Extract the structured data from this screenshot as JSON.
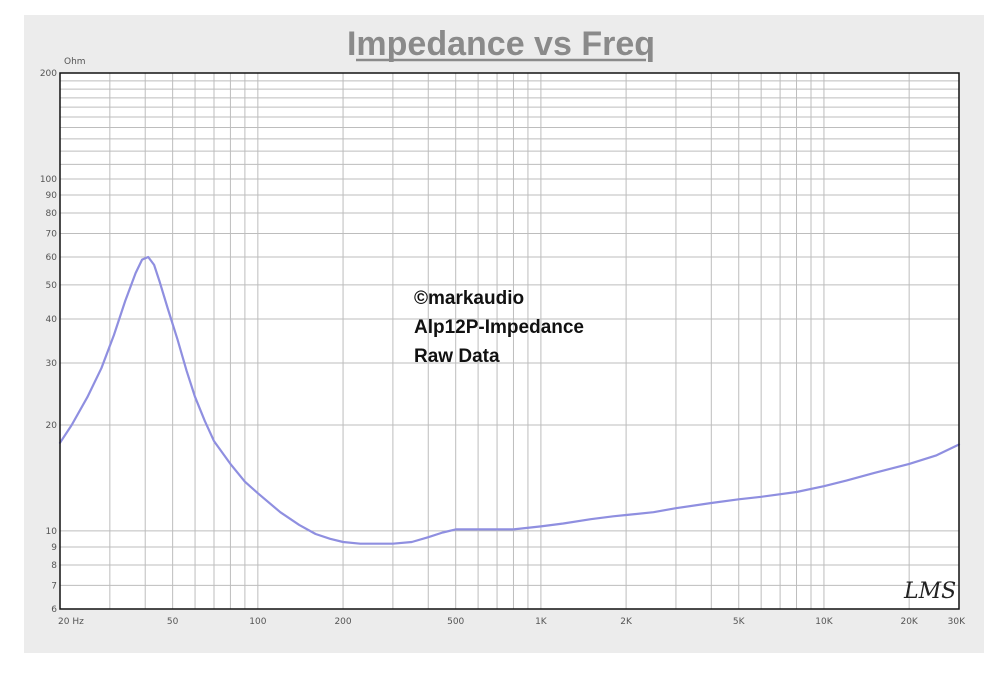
{
  "chart_data": {
    "type": "line",
    "title": "Impedance vs Freq",
    "ylabel": "Ohm",
    "xlabel": "",
    "x_scale": "log",
    "y_scale": "log",
    "xlim": [
      20,
      30000
    ],
    "ylim": [
      6,
      200
    ],
    "grid": true,
    "x_ticks": [
      {
        "value": 20,
        "label": "20 Hz"
      },
      {
        "value": 50,
        "label": "50"
      },
      {
        "value": 100,
        "label": "100"
      },
      {
        "value": 200,
        "label": "200"
      },
      {
        "value": 500,
        "label": "500"
      },
      {
        "value": 1000,
        "label": "1K"
      },
      {
        "value": 2000,
        "label": "2K"
      },
      {
        "value": 5000,
        "label": "5K"
      },
      {
        "value": 10000,
        "label": "10K"
      },
      {
        "value": 20000,
        "label": "20K"
      },
      {
        "value": 30000,
        "label": "30K"
      }
    ],
    "y_ticks": [
      {
        "value": 6,
        "label": "6"
      },
      {
        "value": 7,
        "label": "7"
      },
      {
        "value": 8,
        "label": "8"
      },
      {
        "value": 9,
        "label": "9"
      },
      {
        "value": 10,
        "label": "10"
      },
      {
        "value": 20,
        "label": "20"
      },
      {
        "value": 30,
        "label": "30"
      },
      {
        "value": 40,
        "label": "40"
      },
      {
        "value": 50,
        "label": "50"
      },
      {
        "value": 60,
        "label": "60"
      },
      {
        "value": 70,
        "label": "70"
      },
      {
        "value": 80,
        "label": "80"
      },
      {
        "value": 90,
        "label": "90"
      },
      {
        "value": 100,
        "label": "100"
      },
      {
        "value": 200,
        "label": "200"
      }
    ],
    "annotation_lines": [
      "©markaudio",
      "Alp12P-Impedance",
      "Raw Data"
    ],
    "logo_text": "LMS",
    "series": [
      {
        "color": "#8f8fe0",
        "x": [
          20,
          22,
          25,
          28,
          31,
          34,
          37,
          39,
          41,
          43,
          45,
          48,
          52,
          56,
          60,
          65,
          70,
          80,
          90,
          100,
          120,
          140,
          160,
          180,
          200,
          230,
          260,
          300,
          350,
          400,
          450,
          500,
          600,
          700,
          800,
          1000,
          1200,
          1500,
          1800,
          2000,
          2500,
          3000,
          4000,
          5000,
          6000,
          8000,
          10000,
          12000,
          15000,
          20000,
          25000,
          30000
        ],
        "y": [
          17.8,
          20,
          24,
          29,
          36,
          45,
          54,
          59,
          60,
          57,
          51,
          43,
          35,
          28.5,
          24,
          20.5,
          18,
          15.5,
          13.8,
          12.8,
          11.3,
          10.4,
          9.8,
          9.5,
          9.3,
          9.2,
          9.2,
          9.2,
          9.3,
          9.6,
          9.9,
          10.1,
          10.1,
          10.1,
          10.1,
          10.3,
          10.5,
          10.8,
          11.0,
          11.1,
          11.3,
          11.6,
          12.0,
          12.3,
          12.5,
          12.9,
          13.4,
          13.9,
          14.6,
          15.5,
          16.4,
          17.6
        ]
      }
    ]
  }
}
